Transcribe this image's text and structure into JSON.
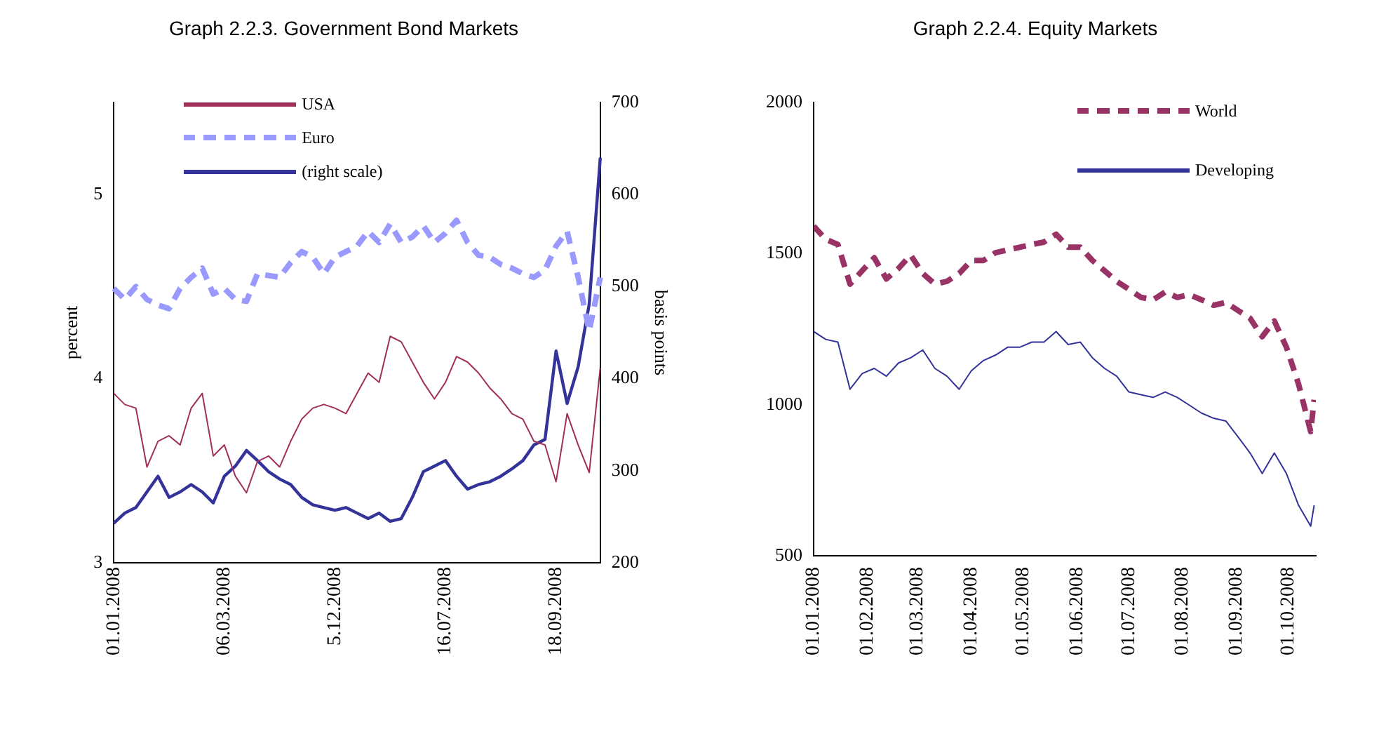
{
  "chart_data": [
    {
      "type": "line",
      "title": "Graph 2.2.3. Government Bond Markets",
      "ylabel": "percent",
      "y2label": "basis points",
      "categories": [
        "01.01.2008",
        null,
        null,
        null,
        null,
        null,
        null,
        null,
        null,
        null,
        "06.03.2008",
        null,
        null,
        null,
        null,
        null,
        null,
        null,
        null,
        null,
        "5.12.2008",
        null,
        null,
        null,
        null,
        null,
        null,
        null,
        null,
        null,
        "16.07.2008",
        null,
        null,
        null,
        null,
        null,
        null,
        null,
        null,
        null,
        "18.09.2008",
        null,
        null,
        null,
        null
      ],
      "ylim": [
        3,
        5.5
      ],
      "yticks": [
        3,
        4,
        5
      ],
      "y2lim": [
        200,
        700
      ],
      "y2ticks": [
        200,
        300,
        400,
        500,
        600,
        700
      ],
      "legend": "top left",
      "grid": false,
      "series": [
        {
          "name": "USA",
          "color": "#a0305a",
          "line_style": "solid",
          "values": [
            3.92,
            3.86,
            3.84,
            3.52,
            3.66,
            3.69,
            3.64,
            3.84,
            3.92,
            3.58,
            3.64,
            3.47,
            3.38,
            3.55,
            3.58,
            3.52,
            3.66,
            3.78,
            3.84,
            3.86,
            3.84,
            3.81,
            3.92,
            4.03,
            3.98,
            4.23,
            4.2,
            4.09,
            3.98,
            3.89,
            3.98,
            4.12,
            4.09,
            4.03,
            3.95,
            3.89,
            3.81,
            3.78,
            3.66,
            3.64,
            3.44,
            3.81,
            3.64,
            3.49,
            4.06
          ]
        },
        {
          "name": "Euro",
          "color": "#9999ff",
          "line_style": "dashed",
          "values": [
            4.49,
            4.43,
            4.5,
            4.43,
            4.4,
            4.38,
            4.49,
            4.55,
            4.6,
            4.46,
            4.49,
            4.43,
            4.42,
            4.57,
            4.56,
            4.55,
            4.63,
            4.69,
            4.66,
            4.57,
            4.66,
            4.69,
            4.72,
            4.8,
            4.74,
            4.84,
            4.74,
            4.77,
            4.83,
            4.74,
            4.79,
            4.86,
            4.74,
            4.67,
            4.66,
            4.62,
            4.6,
            4.57,
            4.55,
            4.59,
            4.72,
            4.8,
            4.55,
            4.26,
            4.55
          ]
        },
        {
          "name": "(right scale)",
          "color": "#333399",
          "line_style": "solid",
          "axis": "y2",
          "values": [
            243,
            254,
            260,
            277,
            294,
            271,
            277,
            285,
            277,
            265,
            294,
            305,
            322,
            311,
            299,
            291,
            285,
            271,
            263,
            260,
            257,
            260,
            254,
            248,
            254,
            245,
            248,
            271,
            299,
            305,
            311,
            294,
            280,
            285,
            288,
            294,
            302,
            311,
            328,
            334,
            430,
            373,
            413,
            481,
            640
          ]
        }
      ]
    },
    {
      "type": "line",
      "title": "Graph 2.2.4. Equity Markets",
      "x": [
        "2008-01-01",
        "2008-01-08",
        "2008-01-15",
        "2008-01-22",
        "2008-01-29",
        "2008-02-05",
        "2008-02-12",
        "2008-02-19",
        "2008-02-26",
        "2008-03-04",
        "2008-03-11",
        "2008-03-18",
        "2008-03-25",
        "2008-04-01",
        "2008-04-08",
        "2008-04-15",
        "2008-04-22",
        "2008-04-29",
        "2008-05-06",
        "2008-05-13",
        "2008-05-20",
        "2008-05-27",
        "2008-06-03",
        "2008-06-10",
        "2008-06-17",
        "2008-06-24",
        "2008-07-01",
        "2008-07-08",
        "2008-07-15",
        "2008-07-22",
        "2008-07-29",
        "2008-08-05",
        "2008-08-12",
        "2008-08-19",
        "2008-08-26",
        "2008-09-02",
        "2008-09-09",
        "2008-09-16",
        "2008-09-23",
        "2008-09-30",
        "2008-10-07",
        "2008-10-14",
        "2008-10-16"
      ],
      "xlim": [
        "2008-01-01",
        "2008-10-17"
      ],
      "xticks": [
        {
          "value": "2008-01-01",
          "label": "01.01.2008"
        },
        {
          "value": "2008-02-01",
          "label": "01.02.2008"
        },
        {
          "value": "2008-03-01",
          "label": "01.03.2008"
        },
        {
          "value": "2008-04-01",
          "label": "01.04.2008"
        },
        {
          "value": "2008-05-01",
          "label": "01.05.2008"
        },
        {
          "value": "2008-06-01",
          "label": "01.06.2008"
        },
        {
          "value": "2008-07-01",
          "label": "01.07.2008"
        },
        {
          "value": "2008-08-01",
          "label": "01.08.2008"
        },
        {
          "value": "2008-09-01",
          "label": "01.09.2008"
        },
        {
          "value": "2008-10-01",
          "label": "01.10.2008"
        }
      ],
      "ylim": [
        500,
        2000
      ],
      "yticks": [
        500,
        1000,
        1500,
        2000
      ],
      "legend": "top right",
      "grid": false,
      "series": [
        {
          "name": "World",
          "color": "#993366",
          "line_style": "dashed",
          "values": [
            1591,
            1547,
            1530,
            1399,
            1443,
            1486,
            1416,
            1451,
            1495,
            1434,
            1399,
            1408,
            1434,
            1477,
            1477,
            1503,
            1512,
            1521,
            1530,
            1538,
            1564,
            1521,
            1521,
            1477,
            1443,
            1408,
            1382,
            1355,
            1347,
            1373,
            1355,
            1364,
            1347,
            1329,
            1338,
            1312,
            1286,
            1225,
            1277,
            1190,
            1068,
            911,
            1016
          ]
        },
        {
          "name": "Developing",
          "color": "#333399",
          "line_style": "solid",
          "values": [
            1242,
            1216,
            1207,
            1051,
            1103,
            1120,
            1094,
            1138,
            1155,
            1181,
            1120,
            1094,
            1051,
            1112,
            1146,
            1164,
            1190,
            1190,
            1207,
            1207,
            1242,
            1199,
            1207,
            1155,
            1120,
            1094,
            1042,
            1033,
            1024,
            1042,
            1024,
            998,
            972,
            955,
            946,
            894,
            840,
            772,
            840,
            772,
            667,
            598,
            667
          ]
        }
      ]
    }
  ]
}
